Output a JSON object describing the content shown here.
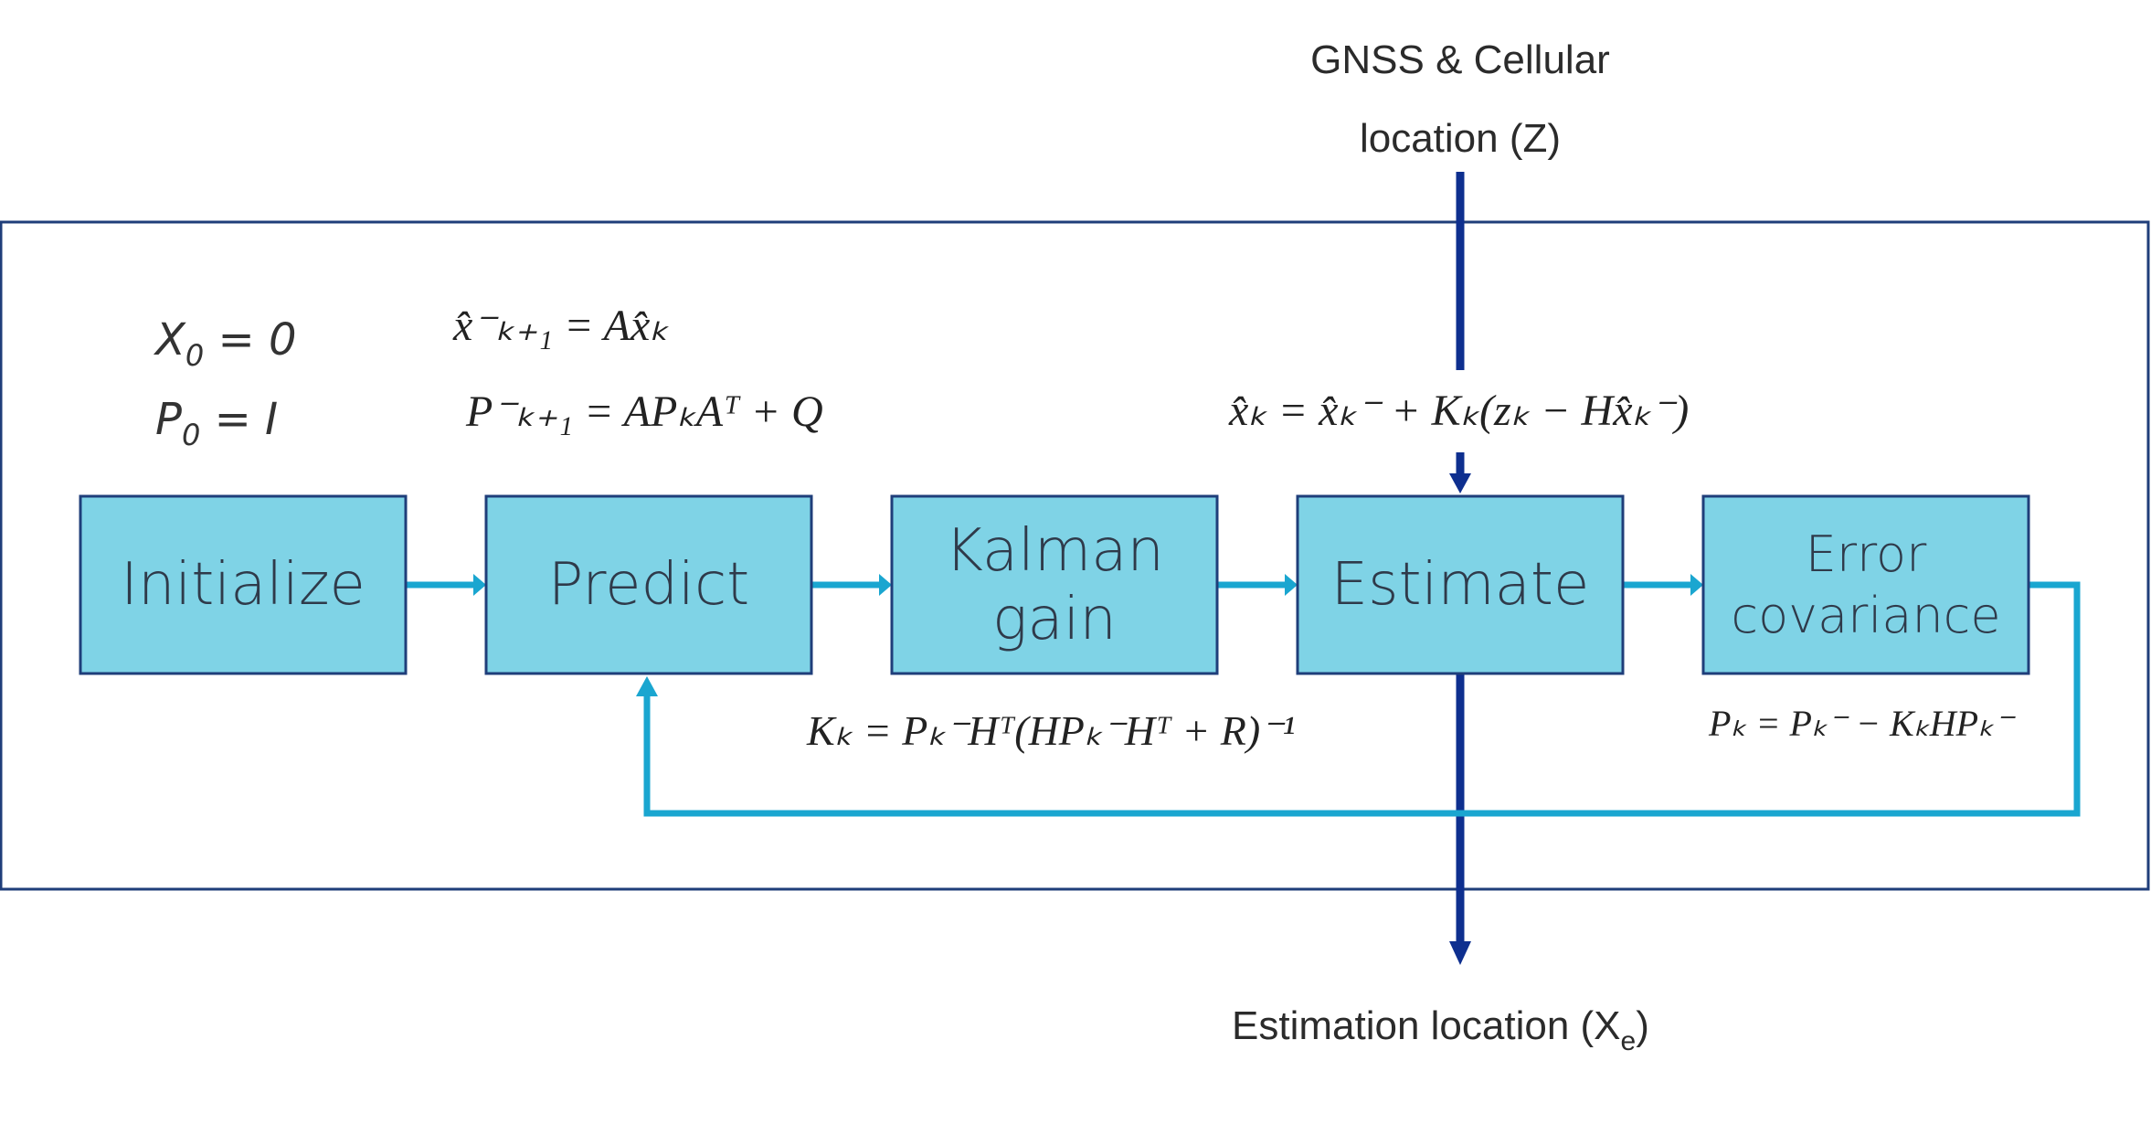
{
  "input": {
    "line1": "GNSS & Cellular",
    "line2": "location (Z)"
  },
  "output": {
    "text": "Estimation location (X",
    "sub": "e",
    "close": ")"
  },
  "init": {
    "x0": "X",
    "x0_sub": "0",
    "x0_rhs": " = 0",
    "p0": "P",
    "p0_sub": "0",
    "p0_rhs": " = I"
  },
  "boxes": [
    {
      "id": "initialize",
      "lines": [
        "Initialize"
      ]
    },
    {
      "id": "predict",
      "lines": [
        "Predict"
      ]
    },
    {
      "id": "kalman-gain",
      "lines": [
        "Kalman",
        "gain"
      ]
    },
    {
      "id": "estimate",
      "lines": [
        "Estimate"
      ]
    },
    {
      "id": "error-covariance",
      "lines": [
        "Error",
        "covariance"
      ]
    }
  ],
  "equations": {
    "predict_state": "x̂⁻ₖ₊₁ = Ax̂ₖ",
    "predict_cov": "P⁻ₖ₊₁ = APₖAᵀ + Q",
    "estimate": "x̂ₖ = x̂ₖ⁻ + Kₖ(zₖ − Hx̂ₖ⁻)",
    "gain": "Kₖ = Pₖ⁻Hᵀ(HPₖ⁻Hᵀ + R)⁻¹",
    "covariance": "Pₖ = Pₖ⁻ − KₖHPₖ⁻"
  },
  "colors": {
    "box_fill": "#7fd3e6",
    "box_stroke": "#1f3e7a",
    "flow_arrow": "#1aa6d0",
    "io_arrow": "#0e2f8f",
    "frame": "#1f3e7a"
  }
}
